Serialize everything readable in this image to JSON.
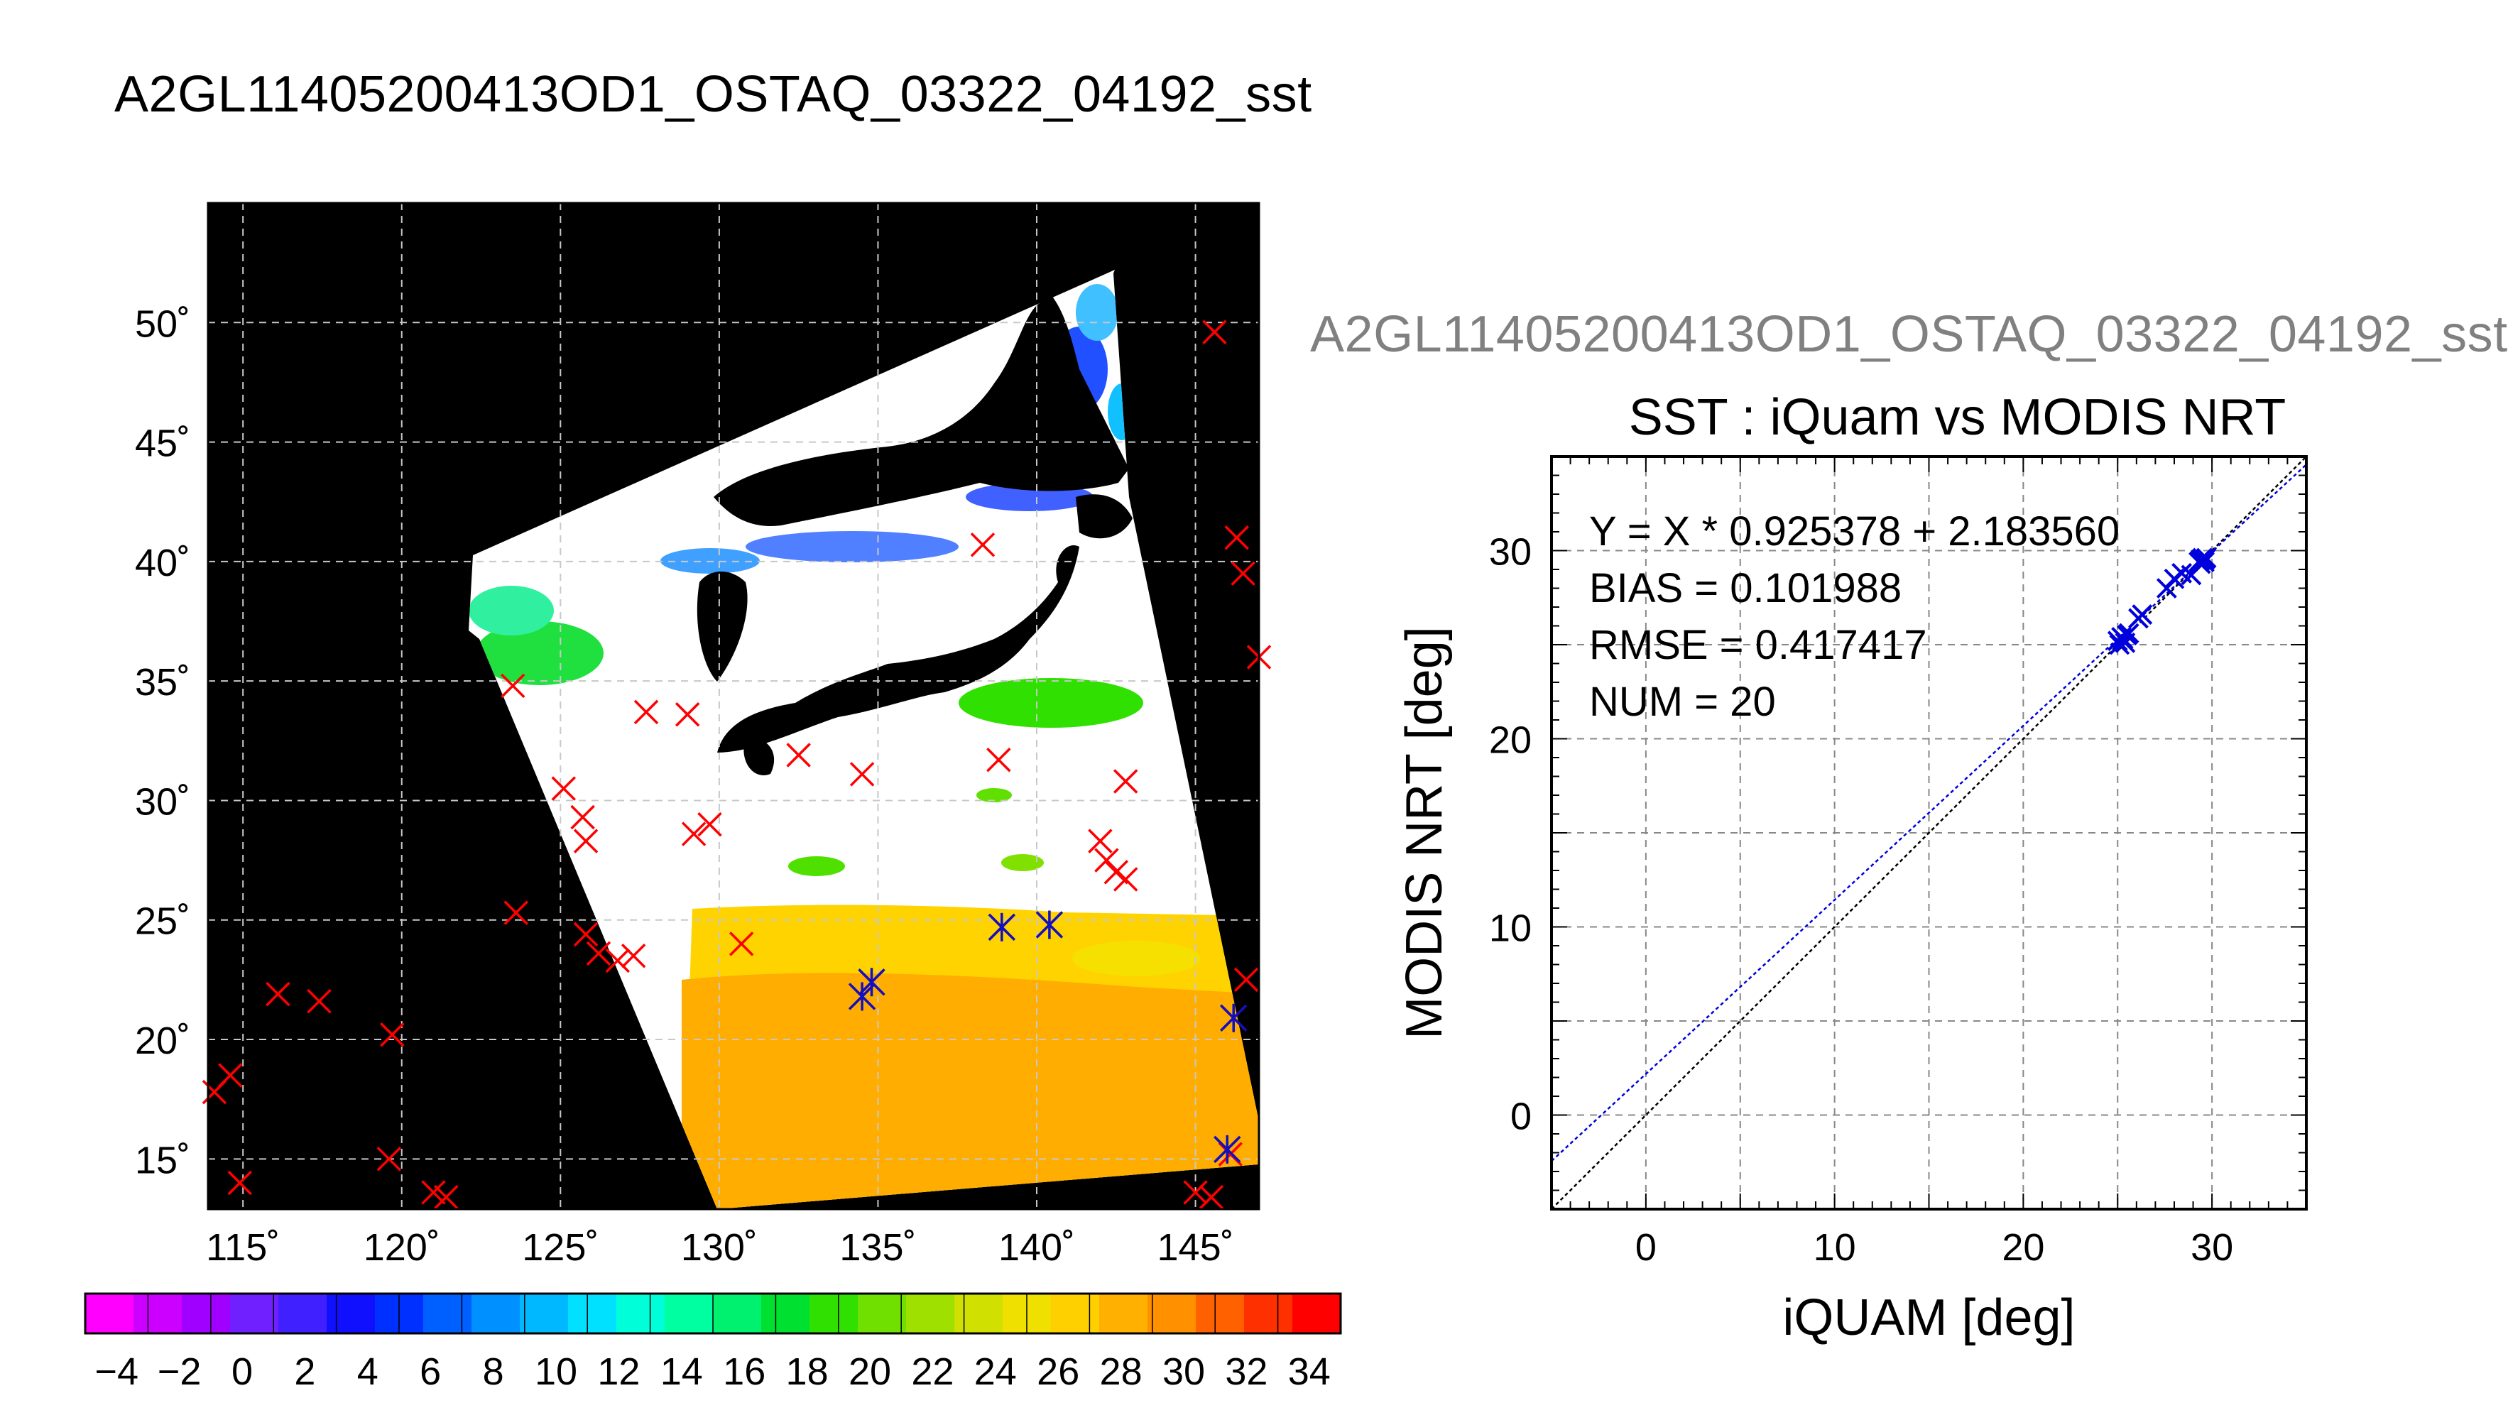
{
  "title": "A2GL11405200413OD1_OSTAQ_03322_04192_sst",
  "subtitle": "A2GL11405200413OD1_OSTAQ_03322_04192_sst",
  "map": {
    "lat_ticks": [
      "50˚",
      "45˚",
      "40˚",
      "35˚",
      "30˚",
      "25˚",
      "20˚",
      "15˚"
    ],
    "lon_ticks": [
      "115˚",
      "120˚",
      "125˚",
      "130˚",
      "135˚",
      "140˚",
      "145˚"
    ],
    "lon_range": [
      113.9,
      147.0
    ],
    "lat_range": [
      12.9,
      55.0
    ],
    "colorbar": {
      "range": [
        -5,
        35
      ],
      "tick_labels": [
        "−4",
        "−2",
        "0",
        "2",
        "4",
        "6",
        "8",
        "10",
        "12",
        "14",
        "16",
        "18",
        "20",
        "22",
        "24",
        "26",
        "28",
        "30",
        "32",
        "34"
      ],
      "colors": [
        "#ff00ff",
        "#cc00ff",
        "#a000ff",
        "#7020ff",
        "#4020ff",
        "#1010ff",
        "#0030ff",
        "#0060ff",
        "#0090ff",
        "#00b8ff",
        "#00e0ff",
        "#00ffd8",
        "#00ffa0",
        "#00f070",
        "#00e030",
        "#30e000",
        "#70e000",
        "#a0e000",
        "#d0e000",
        "#f0e000",
        "#ffd000",
        "#ffb000",
        "#ff9000",
        "#ff6000",
        "#ff3000",
        "#ff0000"
      ]
    },
    "insitu_marks": [
      [
        145.6,
        49.6
      ],
      [
        146.3,
        41.0
      ],
      [
        146.5,
        39.5
      ],
      [
        147.0,
        36.0
      ],
      [
        138.3,
        40.7
      ],
      [
        123.5,
        34.8
      ],
      [
        127.7,
        33.7
      ],
      [
        129.0,
        33.6
      ],
      [
        132.5,
        31.9
      ],
      [
        134.5,
        31.1
      ],
      [
        138.8,
        31.7
      ],
      [
        142.8,
        30.8
      ],
      [
        125.1,
        30.5
      ],
      [
        125.7,
        29.3
      ],
      [
        125.8,
        28.3
      ],
      [
        129.2,
        28.6
      ],
      [
        129.7,
        29.0
      ],
      [
        142.0,
        28.3
      ],
      [
        142.2,
        27.5
      ],
      [
        142.5,
        27.0
      ],
      [
        142.8,
        26.7
      ],
      [
        123.6,
        25.3
      ],
      [
        125.8,
        24.4
      ],
      [
        126.2,
        23.6
      ],
      [
        127.3,
        23.5
      ],
      [
        126.8,
        23.3
      ],
      [
        130.7,
        24.0
      ],
      [
        134.8,
        22.4
      ],
      [
        134.5,
        21.8
      ],
      [
        138.9,
        24.7
      ],
      [
        140.4,
        24.8
      ],
      [
        146.6,
        22.5
      ],
      [
        146.2,
        20.9
      ],
      [
        116.1,
        21.9
      ],
      [
        117.4,
        21.6
      ],
      [
        119.7,
        20.2
      ],
      [
        114.6,
        18.5
      ],
      [
        114.1,
        17.8
      ],
      [
        114.9,
        14.0
      ],
      [
        119.6,
        15.0
      ],
      [
        121.0,
        13.6
      ],
      [
        121.4,
        13.4
      ],
      [
        145.0,
        13.6
      ],
      [
        145.5,
        13.4
      ],
      [
        146.0,
        15.4
      ],
      [
        146.1,
        15.2
      ]
    ],
    "matchup_marks": [
      [
        138.9,
        24.7
      ],
      [
        140.4,
        24.8
      ],
      [
        134.8,
        22.4
      ],
      [
        134.5,
        21.8
      ],
      [
        146.2,
        20.9
      ],
      [
        146.0,
        15.4
      ]
    ]
  },
  "chart_data": {
    "type": "scatter",
    "title": "SST : iQuam vs MODIS NRT",
    "xlabel": "iQUAM [deg]",
    "ylabel": "MODIS NRT [deg]",
    "xlim": [
      -5,
      35
    ],
    "ylim": [
      -5,
      35
    ],
    "xticks": [
      0,
      10,
      20,
      30
    ],
    "yticks": [
      0,
      10,
      20,
      30
    ],
    "grid": true,
    "stats": {
      "fit": "Y = X * 0.925378 + 2.183560",
      "bias": "BIAS = 0.101988",
      "rmse": "RMSE = 0.417417",
      "num": "NUM = 20"
    },
    "fit_line": {
      "slope": 0.925378,
      "intercept": 2.18356
    },
    "one_to_one_line": {
      "slope": 1,
      "intercept": 0
    },
    "points": [
      [
        25.0,
        25.2
      ],
      [
        25.2,
        25.4
      ],
      [
        25.3,
        25.3
      ],
      [
        25.5,
        25.5
      ],
      [
        25.1,
        25.0
      ],
      [
        26.1,
        26.4
      ],
      [
        26.3,
        26.6
      ],
      [
        27.6,
        28.0
      ],
      [
        28.0,
        28.5
      ],
      [
        28.4,
        28.8
      ],
      [
        28.9,
        28.7
      ],
      [
        29.3,
        29.4
      ],
      [
        29.4,
        29.3
      ],
      [
        29.5,
        29.6
      ],
      [
        29.6,
        29.5
      ],
      [
        29.7,
        29.6
      ],
      [
        29.4,
        29.5
      ],
      [
        29.6,
        29.4
      ],
      [
        25.4,
        25.1
      ],
      [
        25.6,
        25.6
      ]
    ]
  }
}
